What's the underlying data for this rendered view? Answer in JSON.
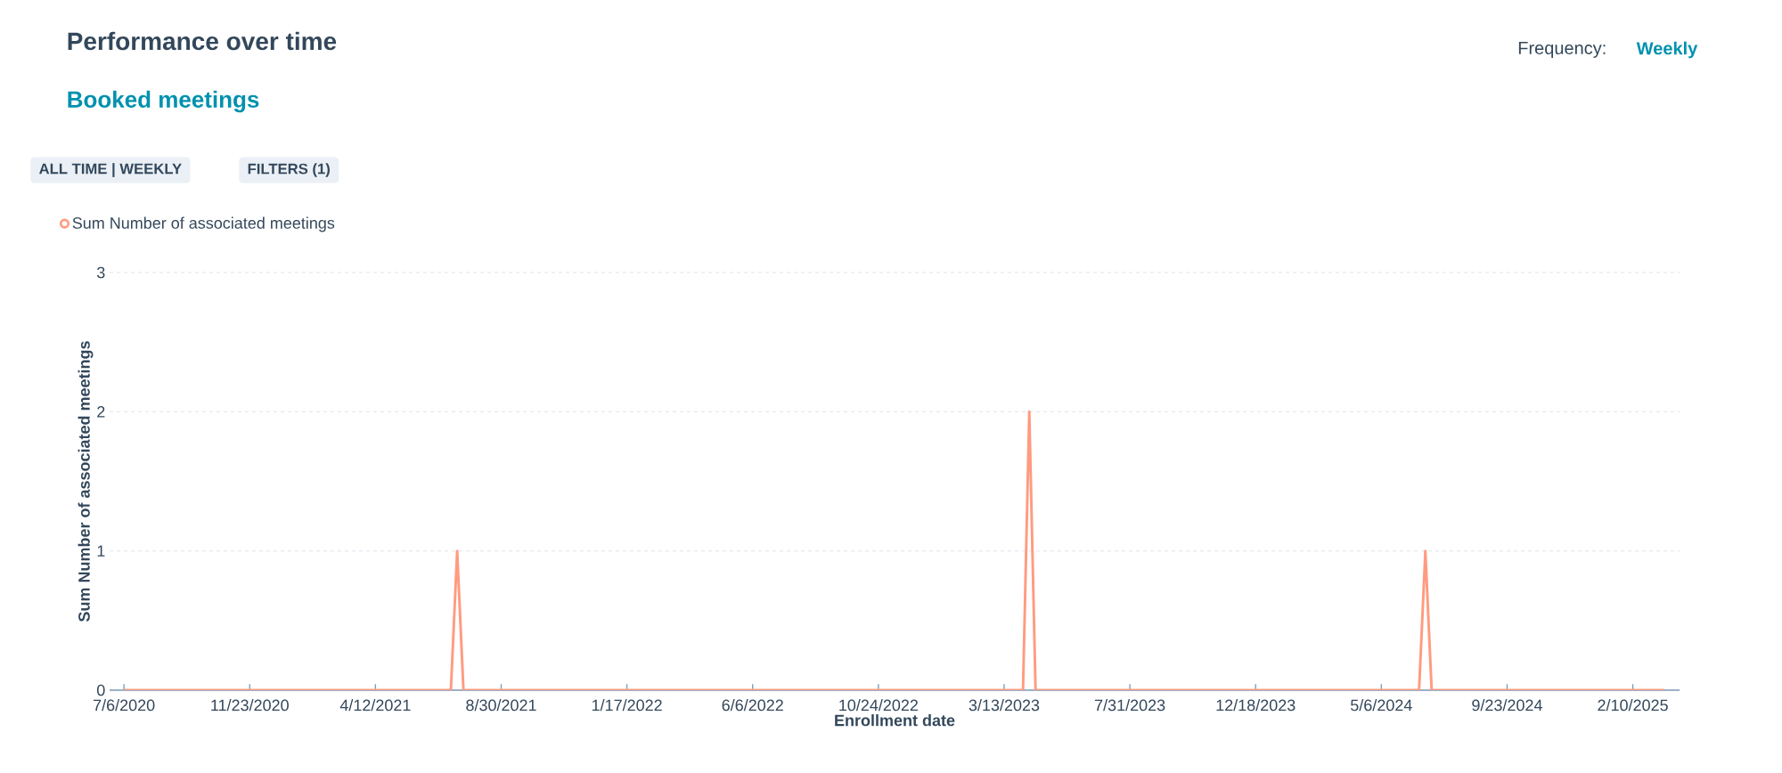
{
  "chart_data": {
    "type": "line",
    "title": "Performance over time",
    "subtitle": "Booked meetings",
    "xlabel": "Enrollment date",
    "ylabel": "Sum Number of associated meetings",
    "annotations": [
      "Frequency:",
      "Weekly",
      "ALL TIME | WEEKLY",
      "FILTERS (1)"
    ],
    "series": [
      {
        "name": "Sum Number of associated meetings",
        "color": "#ff9b80",
        "x": [
          "2020-07-06",
          "2021-07-05",
          "2021-07-12",
          "2021-07-19",
          "2023-04-03",
          "2023-04-10",
          "2023-04-17",
          "2024-06-17",
          "2024-06-24",
          "2024-07-01",
          "2025-03-17"
        ],
        "values": [
          0,
          0,
          1,
          0,
          0,
          2,
          0,
          0,
          1,
          0,
          0
        ]
      }
    ],
    "xlim": [
      "2020-06-20",
      "2025-04-03"
    ],
    "ylim": [
      0,
      3
    ],
    "yticks": [
      0,
      1,
      2,
      3
    ],
    "xticks": [
      {
        "value": "2020-07-06",
        "label": "7/6/2020"
      },
      {
        "value": "2020-11-23",
        "label": "11/23/2020"
      },
      {
        "value": "2021-04-12",
        "label": "4/12/2021"
      },
      {
        "value": "2021-08-30",
        "label": "8/30/2021"
      },
      {
        "value": "2022-01-17",
        "label": "1/17/2022"
      },
      {
        "value": "2022-06-06",
        "label": "6/6/2022"
      },
      {
        "value": "2022-10-24",
        "label": "10/24/2022"
      },
      {
        "value": "2023-03-13",
        "label": "3/13/2023"
      },
      {
        "value": "2023-07-31",
        "label": "7/31/2023"
      },
      {
        "value": "2023-12-18",
        "label": "12/18/2023"
      },
      {
        "value": "2024-05-06",
        "label": "5/6/2024"
      },
      {
        "value": "2024-09-23",
        "label": "9/23/2024"
      },
      {
        "value": "2025-02-10",
        "label": "2/10/2025"
      }
    ],
    "grid": "y",
    "legend": "top left"
  }
}
